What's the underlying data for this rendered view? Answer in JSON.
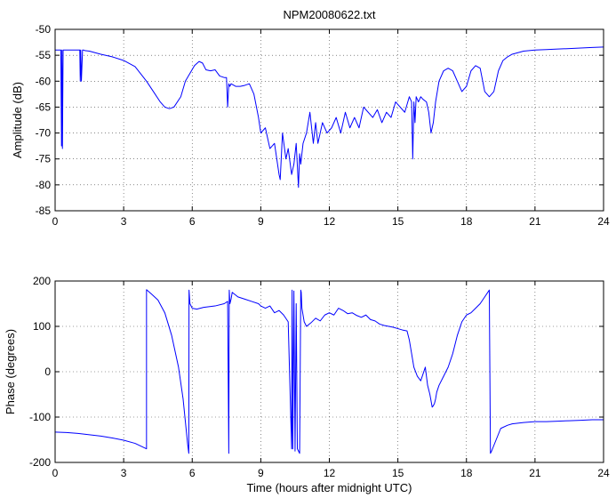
{
  "chart_data": [
    {
      "type": "line",
      "title": "NPM20080622.txt",
      "xlabel": "",
      "ylabel": "Amplitude (dB)",
      "xlim": [
        0,
        24
      ],
      "ylim": [
        -85,
        -50
      ],
      "xticks": [
        0,
        3,
        6,
        9,
        12,
        15,
        18,
        21,
        24
      ],
      "yticks": [
        -85,
        -80,
        -75,
        -70,
        -65,
        -60,
        -55,
        -50
      ],
      "grid": true,
      "series": [
        {
          "color": "#0000ff",
          "x": [
            0,
            0.25,
            0.28,
            0.3,
            0.32,
            0.35,
            0.5,
            1.0,
            1.08,
            1.1,
            1.12,
            1.15,
            1.2,
            1.25,
            1.3,
            1.5,
            2.0,
            2.5,
            3.0,
            3.5,
            4.0,
            4.3,
            4.6,
            4.8,
            5.0,
            5.2,
            5.5,
            5.7,
            5.9,
            6.1,
            6.3,
            6.45,
            6.6,
            6.8,
            7.0,
            7.2,
            7.4,
            7.5,
            7.55,
            7.6,
            7.65,
            7.7,
            7.9,
            8.1,
            8.3,
            8.5,
            8.7,
            8.9,
            9.0,
            9.2,
            9.4,
            9.6,
            9.8,
            9.85,
            9.95,
            10.1,
            10.2,
            10.35,
            10.45,
            10.55,
            10.65,
            10.7,
            10.75,
            10.85,
            11.0,
            11.15,
            11.3,
            11.4,
            11.5,
            11.7,
            11.9,
            12.1,
            12.3,
            12.5,
            12.7,
            12.9,
            13.1,
            13.3,
            13.5,
            13.7,
            13.9,
            14.1,
            14.3,
            14.5,
            14.7,
            14.9,
            15.1,
            15.3,
            15.5,
            15.6,
            15.65,
            15.7,
            15.75,
            15.8,
            15.9,
            16.0,
            16.1,
            16.25,
            16.35,
            16.45,
            16.55,
            16.65,
            16.8,
            17.0,
            17.2,
            17.4,
            17.6,
            17.8,
            18.0,
            18.2,
            18.4,
            18.6,
            18.8,
            19.0,
            19.2,
            19.4,
            19.6,
            19.8,
            20.0,
            20.5,
            21.0,
            21.5,
            22.0,
            22.5,
            23.0,
            23.5,
            24.0
          ],
          "y": [
            -54,
            -54,
            -72.5,
            -54,
            -73,
            -54,
            -54,
            -54,
            -54,
            -60,
            -54,
            -60,
            -54,
            -54,
            -54.1,
            -54.2,
            -54.8,
            -55.3,
            -56,
            -57.2,
            -60,
            -62,
            -64,
            -65,
            -65.3,
            -65,
            -63,
            -60,
            -58.5,
            -57,
            -56.2,
            -56.5,
            -57.8,
            -58,
            -57.8,
            -59,
            -59.3,
            -59.3,
            -65,
            -60.5,
            -61,
            -60.5,
            -61,
            -61,
            -60.8,
            -60.5,
            -62.5,
            -67,
            -70,
            -69,
            -73,
            -72,
            -78,
            -79,
            -70,
            -75,
            -73,
            -78,
            -76,
            -72,
            -80.5,
            -74,
            -76,
            -72,
            -70,
            -66,
            -72,
            -68,
            -72,
            -68,
            -70,
            -69,
            -67,
            -70,
            -66,
            -69,
            -67,
            -69,
            -65,
            -66,
            -67,
            -65.5,
            -68,
            -66,
            -67,
            -64,
            -65,
            -66,
            -63,
            -64,
            -75,
            -64,
            -68,
            -63,
            -64,
            -63,
            -63.5,
            -64,
            -66,
            -70,
            -68,
            -64,
            -60,
            -58,
            -57.5,
            -58,
            -60,
            -62,
            -61,
            -58,
            -57,
            -57.5,
            -62,
            -63,
            -62,
            -58,
            -56,
            -55.3,
            -54.8,
            -54.2,
            -54,
            -53.9,
            -53.8,
            -53.7,
            -53.6,
            -53.5,
            -53.4
          ]
        }
      ]
    },
    {
      "type": "line",
      "title": "",
      "xlabel": "Time (hours after midnight UTC)",
      "ylabel": "Phase (degrees)",
      "xlim": [
        0,
        24
      ],
      "ylim": [
        -200,
        200
      ],
      "xticks": [
        0,
        3,
        6,
        9,
        12,
        15,
        18,
        21,
        24
      ],
      "yticks": [
        -200,
        -100,
        0,
        100,
        200
      ],
      "grid": true,
      "series": [
        {
          "color": "#0000ff",
          "x": [
            0,
            0.5,
            1.0,
            1.5,
            2.0,
            2.5,
            3.0,
            3.5,
            4.0,
            4.0,
            4.2,
            4.5,
            4.8,
            5.1,
            5.4,
            5.6,
            5.7,
            5.8,
            5.85,
            5.86,
            5.9,
            6.0,
            6.2,
            6.5,
            7.0,
            7.4,
            7.55,
            7.6,
            7.62,
            7.65,
            7.7,
            7.75,
            8.0,
            8.3,
            8.6,
            8.9,
            9.0,
            9.2,
            9.4,
            9.6,
            9.8,
            10.0,
            10.2,
            10.35,
            10.37,
            10.4,
            10.45,
            10.5,
            10.55,
            10.6,
            10.7,
            10.75,
            10.77,
            10.8,
            10.9,
            11.0,
            11.2,
            11.4,
            11.6,
            11.8,
            12.0,
            12.2,
            12.4,
            12.6,
            12.8,
            13.0,
            13.2,
            13.4,
            13.6,
            13.8,
            14.0,
            14.2,
            14.4,
            14.6,
            14.8,
            15.0,
            15.2,
            15.4,
            15.5,
            15.6,
            15.7,
            15.85,
            16.0,
            16.1,
            16.2,
            16.3,
            16.4,
            16.5,
            16.55,
            16.6,
            16.65,
            16.7,
            16.8,
            17.0,
            17.2,
            17.4,
            17.6,
            17.8,
            18.0,
            18.2,
            18.4,
            18.6,
            18.8,
            19.0,
            19.05,
            19.1,
            19.3,
            19.5,
            19.8,
            20.0,
            20.5,
            21.0,
            21.5,
            22.0,
            22.5,
            23.0,
            23.5,
            24.0
          ],
          "y": [
            -133,
            -134,
            -136,
            -139,
            -142,
            -146,
            -151,
            -158,
            -170,
            181,
            172,
            158,
            130,
            80,
            10,
            -60,
            -110,
            -160,
            -180,
            180,
            150,
            140,
            138,
            142,
            145,
            150,
            155,
            -180,
            180,
            150,
            160,
            175,
            165,
            160,
            155,
            150,
            145,
            140,
            145,
            130,
            135,
            125,
            110,
            -170,
            180,
            -170,
            178,
            -175,
            150,
            -170,
            -180,
            180,
            175,
            140,
            110,
            100,
            108,
            118,
            112,
            125,
            130,
            125,
            140,
            135,
            128,
            130,
            124,
            120,
            125,
            115,
            112,
            105,
            102,
            100,
            98,
            95,
            92,
            90,
            70,
            40,
            10,
            -10,
            -20,
            -5,
            10,
            -30,
            -50,
            -78,
            -75,
            -70,
            -60,
            -45,
            -30,
            -10,
            10,
            40,
            80,
            110,
            125,
            130,
            140,
            150,
            165,
            180,
            -180,
            -175,
            -150,
            -125,
            -118,
            -115,
            -112,
            -110,
            -110,
            -109,
            -108,
            -107,
            -106,
            -106
          ]
        }
      ]
    }
  ]
}
